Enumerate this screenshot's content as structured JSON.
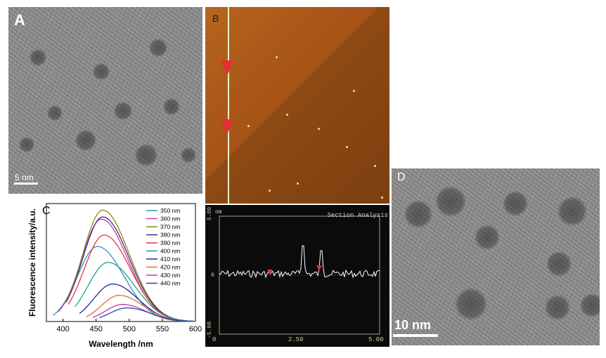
{
  "figure": {
    "panel_a": {
      "letter": "A",
      "scale_label": "5 nm"
    },
    "panel_b": {
      "letter": "B"
    },
    "section": {
      "unit": "nm",
      "title": "Section Analysis",
      "y_ticks": [
        "5.00",
        "0",
        "-5.00"
      ],
      "x_ticks": [
        "0",
        "2.50",
        "5.00"
      ]
    },
    "panel_c": {
      "letter": "C"
    },
    "panel_d": {
      "letter": "D",
      "scale_label": "10 nm"
    }
  },
  "chart_data": {
    "type": "line",
    "xlabel": "Wavelength /nm",
    "ylabel": "Fluorescence intensity/a.u.",
    "xlim": [
      375,
      600
    ],
    "x_ticks": [
      400,
      450,
      500,
      550,
      600
    ],
    "legend_position": "top-right",
    "series": [
      {
        "name": "350 nm",
        "color": "#3a8fb7",
        "start": 385,
        "peak": 452,
        "amp": 0.66,
        "w": 40
      },
      {
        "name": "360 nm",
        "color": "#c23bb0",
        "start": 393,
        "peak": 458,
        "amp": 0.9,
        "w": 40
      },
      {
        "name": "370 nm",
        "color": "#8a8a1a",
        "start": 403,
        "peak": 460,
        "amp": 0.98,
        "w": 40
      },
      {
        "name": "380 nm",
        "color": "#4a2a7a",
        "start": 405,
        "peak": 460,
        "amp": 0.92,
        "w": 40
      },
      {
        "name": "390 nm",
        "color": "#e03a3a",
        "start": 408,
        "peak": 462,
        "amp": 0.76,
        "w": 40
      },
      {
        "name": "400 nm",
        "color": "#1aa58a",
        "start": 418,
        "peak": 468,
        "amp": 0.52,
        "w": 40
      },
      {
        "name": "410 nm",
        "color": "#1a2a9a",
        "start": 425,
        "peak": 475,
        "amp": 0.33,
        "w": 38
      },
      {
        "name": "420 nm",
        "color": "#e86a3a",
        "start": 435,
        "peak": 485,
        "amp": 0.23,
        "w": 36
      },
      {
        "name": "430 nm",
        "color": "#c23ba0",
        "start": 445,
        "peak": 490,
        "amp": 0.15,
        "w": 35
      },
      {
        "name": "440 nm",
        "color": "#2a4aa0",
        "start": 455,
        "peak": 497,
        "amp": 0.12,
        "w": 35
      }
    ]
  }
}
